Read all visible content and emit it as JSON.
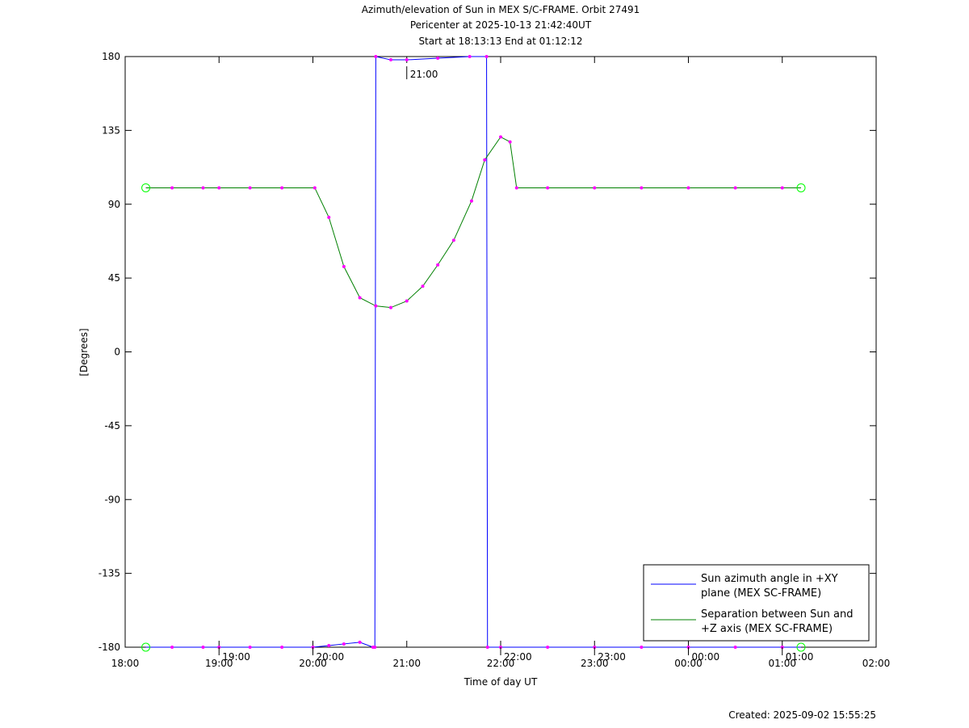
{
  "chart_data": {
    "type": "line",
    "title": "Azimuth/elevation of Sun in MEX S/C-FRAME.  Orbit 27491",
    "subtitle": [
      "Pericenter at 2025-10-13 21:42:40UT",
      "Start at 18:13:13 End at 01:12:12"
    ],
    "x_label": "Time of day UT",
    "y_label": "[Degrees]",
    "footer": "Created: 2025-09-02 15:55:25",
    "xlim": [
      18,
      26
    ],
    "xticks": [
      {
        "value": 18,
        "label": "18:00"
      },
      {
        "value": 19,
        "label": "19:00"
      },
      {
        "value": 20,
        "label": "20:00"
      },
      {
        "value": 21,
        "label": "21:00"
      },
      {
        "value": 22,
        "label": "22:00"
      },
      {
        "value": 23,
        "label": "23:00"
      },
      {
        "value": 24,
        "label": "00:00"
      },
      {
        "value": 25,
        "label": "01:00"
      },
      {
        "value": 26,
        "label": "02:00"
      }
    ],
    "ylim": [
      -180,
      180
    ],
    "yticks": [
      180,
      135,
      90,
      45,
      0,
      -45,
      -90,
      -135,
      -180
    ],
    "marker_color": "#ff00ff",
    "endpoint_marker_color": "#00ff00",
    "series": [
      {
        "name": "Sun azimuth angle in +XY plane (MEX SC-FRAME)",
        "color": "#0000ff",
        "x": [
          18.22,
          18.5,
          18.83,
          19.0,
          19.33,
          19.67,
          20.0,
          20.17,
          20.33,
          20.5,
          20.64,
          20.66,
          20.67,
          20.83,
          21.0,
          21.33,
          21.67,
          21.85,
          21.86,
          22.0,
          22.5,
          23.0,
          23.5,
          24.0,
          24.5,
          25.0,
          25.2
        ],
        "values": [
          -180,
          -180,
          -180,
          -180,
          -180,
          -180,
          -180,
          -179,
          -178,
          -177,
          -180,
          -180,
          180,
          178,
          178,
          179,
          180,
          180,
          -180,
          -180,
          -180,
          -180,
          -180,
          -180,
          -180,
          -180,
          -180
        ]
      },
      {
        "name": "Separation between Sun and +Z axis (MEX SC-FRAME)",
        "color": "#008000",
        "x": [
          18.22,
          18.5,
          18.83,
          19.0,
          19.33,
          19.67,
          20.02,
          20.17,
          20.33,
          20.5,
          20.67,
          20.83,
          21.0,
          21.17,
          21.33,
          21.5,
          21.69,
          21.83,
          22.0,
          22.1,
          22.17,
          22.5,
          23.0,
          23.5,
          24.0,
          24.5,
          25.0,
          25.2
        ],
        "values": [
          100,
          100,
          100,
          100,
          100,
          100,
          100,
          82,
          52,
          33,
          28,
          27,
          31,
          40,
          53,
          68,
          92,
          117,
          131,
          128,
          100,
          100,
          100,
          100,
          100,
          100,
          100,
          100
        ]
      }
    ],
    "annotations": [
      {
        "text": "21:00",
        "x": 21.0,
        "y": 177
      },
      {
        "text": "19:00",
        "x": 19.0,
        "y": -180
      },
      {
        "text": "20:00",
        "x": 20.0,
        "y": -180
      },
      {
        "text": "22:00",
        "x": 22.0,
        "y": -180
      },
      {
        "text": "23:00",
        "x": 23.0,
        "y": -180
      },
      {
        "text": "00:00",
        "x": 24.0,
        "y": -180
      },
      {
        "text": "01:00",
        "x": 25.0,
        "y": -180
      }
    ]
  }
}
